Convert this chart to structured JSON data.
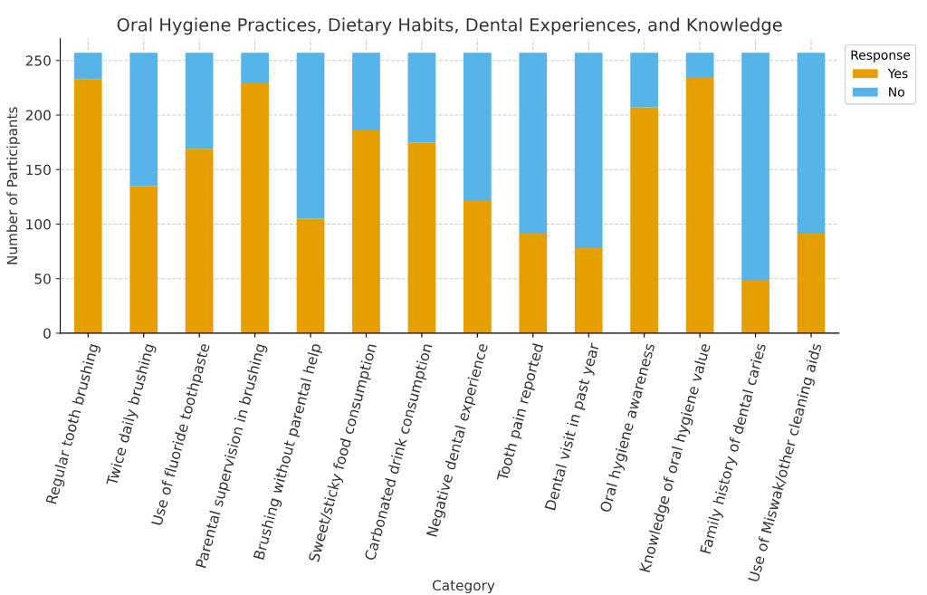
{
  "chart_data": {
    "type": "bar",
    "stacked": true,
    "title": "Oral Hygiene Practices, Dietary Habits, Dental Experiences, and Knowledge",
    "xlabel": "Category",
    "ylabel": "Number of Participants",
    "legend_title": "Response",
    "legend": "top right",
    "grid": true,
    "categories": [
      "Regular tooth brushing",
      "Twice daily brushing",
      "Use of fluoride toothpaste",
      "Parental supervision in brushing",
      "Brushing without parental help",
      "Sweet/sticky food consumption",
      "Carbonated drink consumption",
      "Negative dental experience",
      "Tooth pain reported",
      "Dental visit in past year",
      "Oral hygiene awareness",
      "Knowledge of oral hygiene value",
      "Family history of dental caries",
      "Use of Miswak/other cleaning aids"
    ],
    "series": [
      {
        "name": "Yes",
        "color": "#e69f00",
        "values": [
          233,
          135,
          169,
          229,
          105,
          186,
          175,
          122,
          92,
          78,
          207,
          234,
          49,
          92
        ]
      },
      {
        "name": "No",
        "color": "#56b4e9",
        "values": [
          24,
          122,
          88,
          28,
          152,
          71,
          82,
          135,
          165,
          179,
          50,
          23,
          208,
          165
        ]
      }
    ],
    "ylim": [
      0,
      270
    ],
    "yticks": [
      0,
      50,
      100,
      150,
      200,
      250
    ]
  }
}
